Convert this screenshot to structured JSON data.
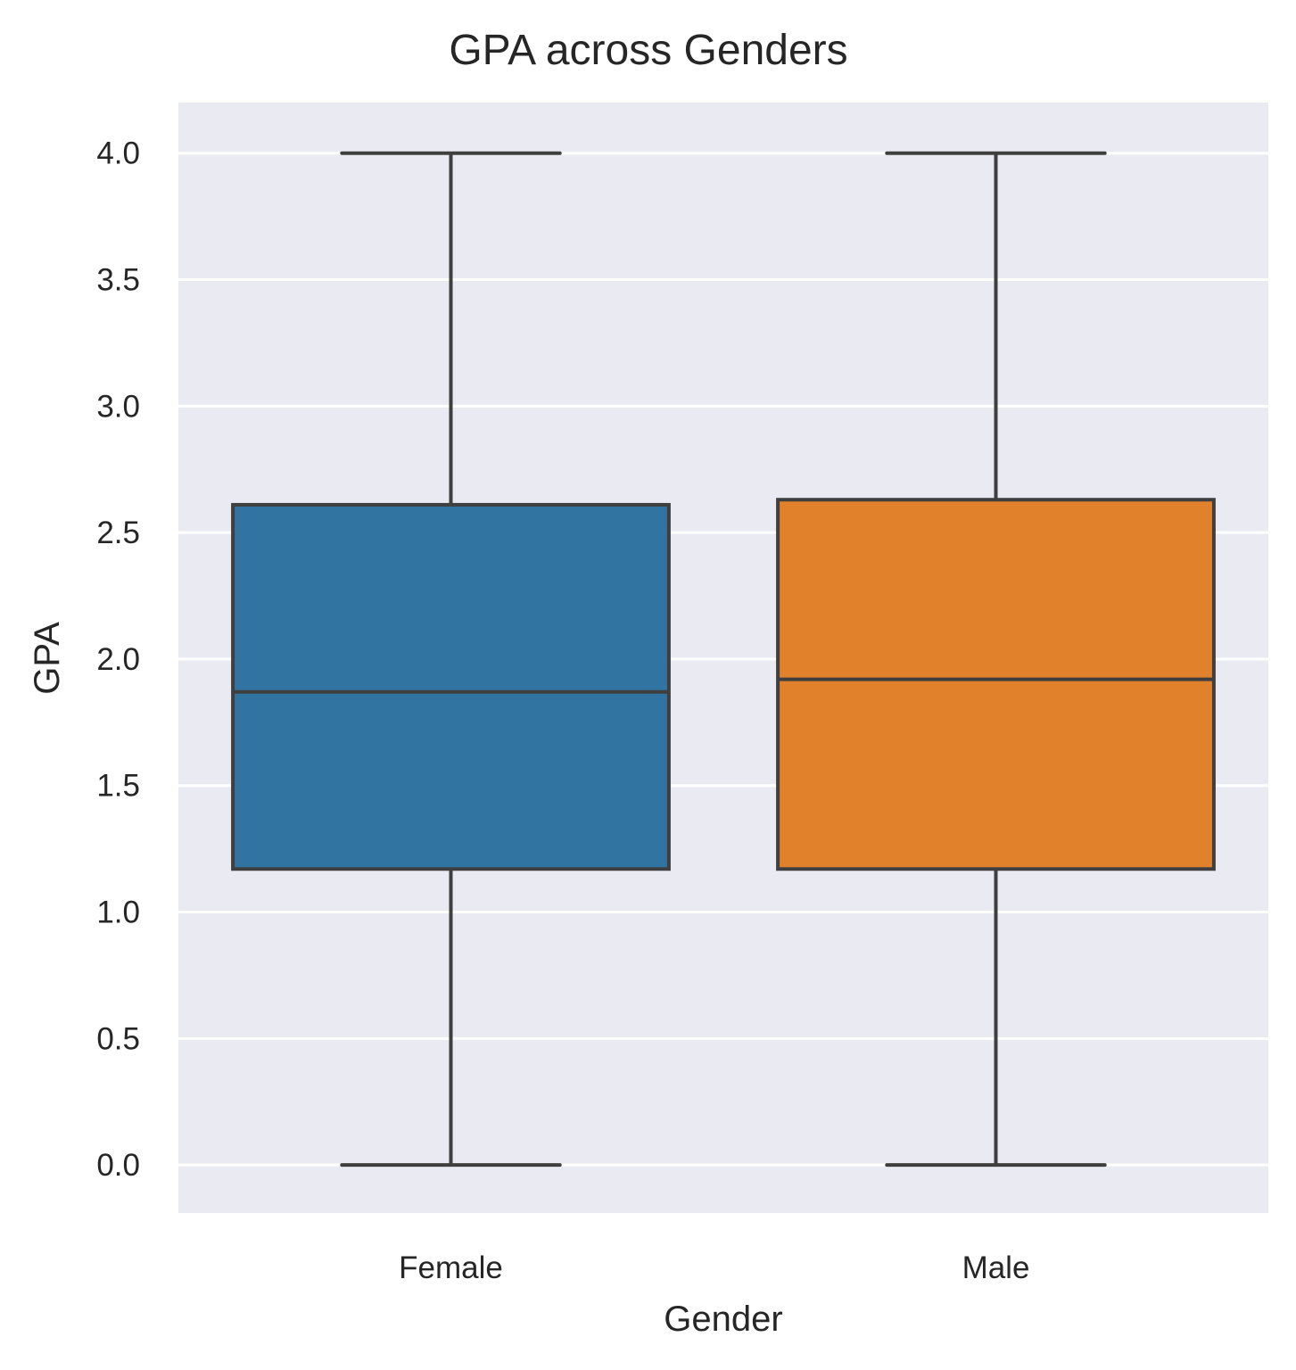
{
  "chart_data": {
    "type": "box",
    "title": "GPA across Genders",
    "xlabel": "Gender",
    "ylabel": "GPA",
    "categories": [
      "Female",
      "Male"
    ],
    "ylim": [
      -0.19,
      4.2
    ],
    "yticks": [
      0.0,
      0.5,
      1.0,
      1.5,
      2.0,
      2.5,
      3.0,
      3.5,
      4.0
    ],
    "ytick_labels": [
      "0.0",
      "0.5",
      "1.0",
      "1.5",
      "2.0",
      "2.5",
      "3.0",
      "3.5",
      "4.0"
    ],
    "grid": true,
    "legend": "none",
    "boxes": [
      {
        "category": "Female",
        "whisker_low": 0.0,
        "q1": 1.17,
        "median": 1.87,
        "q3": 2.61,
        "whisker_high": 4.0,
        "color": "#3274a1"
      },
      {
        "category": "Male",
        "whisker_low": 0.0,
        "q1": 1.17,
        "median": 1.92,
        "q3": 2.63,
        "whisker_high": 4.0,
        "color": "#e1812c"
      }
    ],
    "colors": {
      "plot_background": "#eaeaf2",
      "grid": "#ffffff",
      "box_edge": "#3f3f3f",
      "text": "#262626"
    }
  }
}
